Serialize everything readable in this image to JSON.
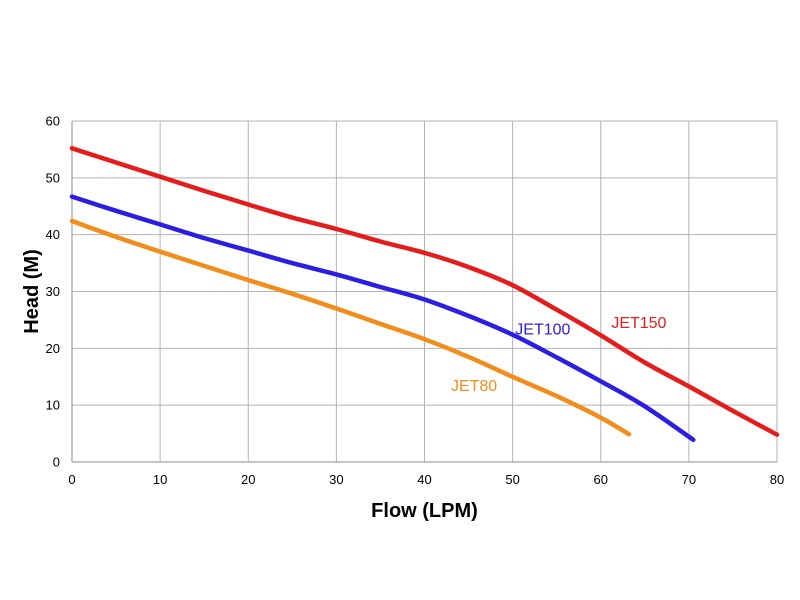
{
  "chart_data": {
    "type": "line",
    "title": "",
    "xlabel": "Flow (LPM)",
    "ylabel": "Head (M)",
    "xlim": [
      0,
      80
    ],
    "ylim": [
      0,
      60
    ],
    "xticks": [
      "0",
      "10",
      "20",
      "30",
      "40",
      "50",
      "60",
      "70",
      "80"
    ],
    "yticks": [
      "0",
      "10",
      "20",
      "30",
      "40",
      "50",
      "60"
    ],
    "grid": true,
    "legend": "inline labels",
    "series": [
      {
        "name": "JET150",
        "color": "#e51c1c",
        "points": [
          [
            0,
            55.2
          ],
          [
            5,
            52.7
          ],
          [
            10,
            50.2
          ],
          [
            15,
            47.7
          ],
          [
            20,
            45.3
          ],
          [
            25,
            43.0
          ],
          [
            30,
            41.0
          ],
          [
            35,
            38.8
          ],
          [
            40,
            36.8
          ],
          [
            45,
            34.3
          ],
          [
            50,
            31.1
          ],
          [
            55,
            26.8
          ],
          [
            60,
            22.3
          ],
          [
            65,
            17.5
          ],
          [
            70,
            13.3
          ],
          [
            75,
            9.0
          ],
          [
            80,
            4.8
          ]
        ]
      },
      {
        "name": "JET100",
        "color": "#2b1ee0",
        "points": [
          [
            0,
            46.7
          ],
          [
            5,
            44.2
          ],
          [
            10,
            41.8
          ],
          [
            15,
            39.4
          ],
          [
            20,
            37.2
          ],
          [
            25,
            35.0
          ],
          [
            30,
            33.0
          ],
          [
            35,
            30.8
          ],
          [
            40,
            28.6
          ],
          [
            45,
            25.7
          ],
          [
            50,
            22.4
          ],
          [
            55,
            18.4
          ],
          [
            60,
            14.2
          ],
          [
            65,
            9.8
          ],
          [
            70.5,
            3.9
          ]
        ]
      },
      {
        "name": "JET80",
        "color": "#f28c1a",
        "points": [
          [
            0,
            42.4
          ],
          [
            5,
            39.6
          ],
          [
            10,
            37.0
          ],
          [
            15,
            34.5
          ],
          [
            20,
            32.0
          ],
          [
            25,
            29.6
          ],
          [
            30,
            27.0
          ],
          [
            35,
            24.3
          ],
          [
            40,
            21.6
          ],
          [
            45,
            18.5
          ],
          [
            50,
            15.0
          ],
          [
            55,
            11.6
          ],
          [
            60,
            7.8
          ],
          [
            63.2,
            4.9
          ]
        ]
      }
    ]
  }
}
